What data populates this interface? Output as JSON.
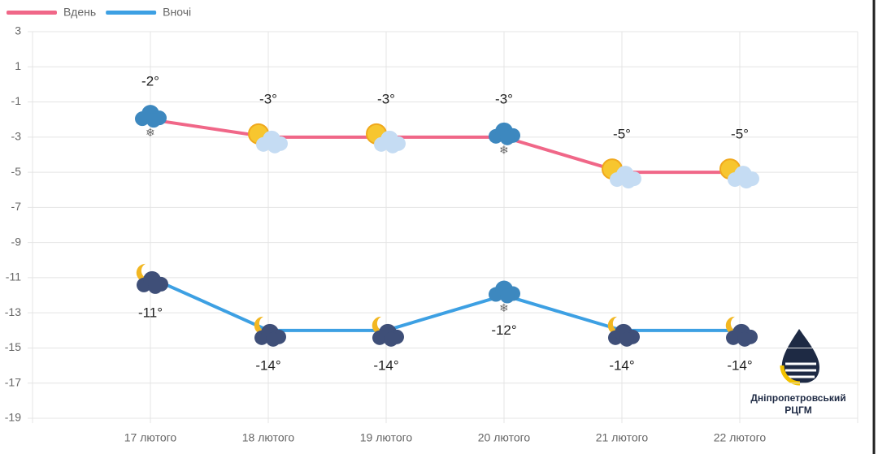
{
  "chart_data": {
    "type": "line",
    "categories": [
      "17 лютого",
      "18 лютого",
      "19 лютого",
      "20 лютого",
      "21 лютого",
      "22 лютого"
    ],
    "series": [
      {
        "name": "Вдень",
        "color": "#f06788",
        "values": [
          -2,
          -3,
          -3,
          -3,
          -5,
          -5
        ],
        "value_labels": [
          "-2°",
          "-3°",
          "-3°",
          "-3°",
          "-5°",
          "-5°"
        ]
      },
      {
        "name": "Вночі",
        "color": "#3da0e3",
        "values": [
          -11,
          -14,
          -14,
          -12,
          -14,
          -14
        ],
        "value_labels": [
          "-11°",
          "-14°",
          "-14°",
          "-12°",
          "-14°",
          "-14°"
        ]
      }
    ],
    "ylim": [
      -19,
      3
    ],
    "yticks": [
      3,
      1,
      -1,
      -3,
      -5,
      -7,
      -9,
      -11,
      -13,
      -15,
      -17,
      -19
    ],
    "grid": true,
    "legend": "top-left",
    "logo": {
      "line1": "Дніпропетровський",
      "line2": "РЦГМ"
    }
  }
}
